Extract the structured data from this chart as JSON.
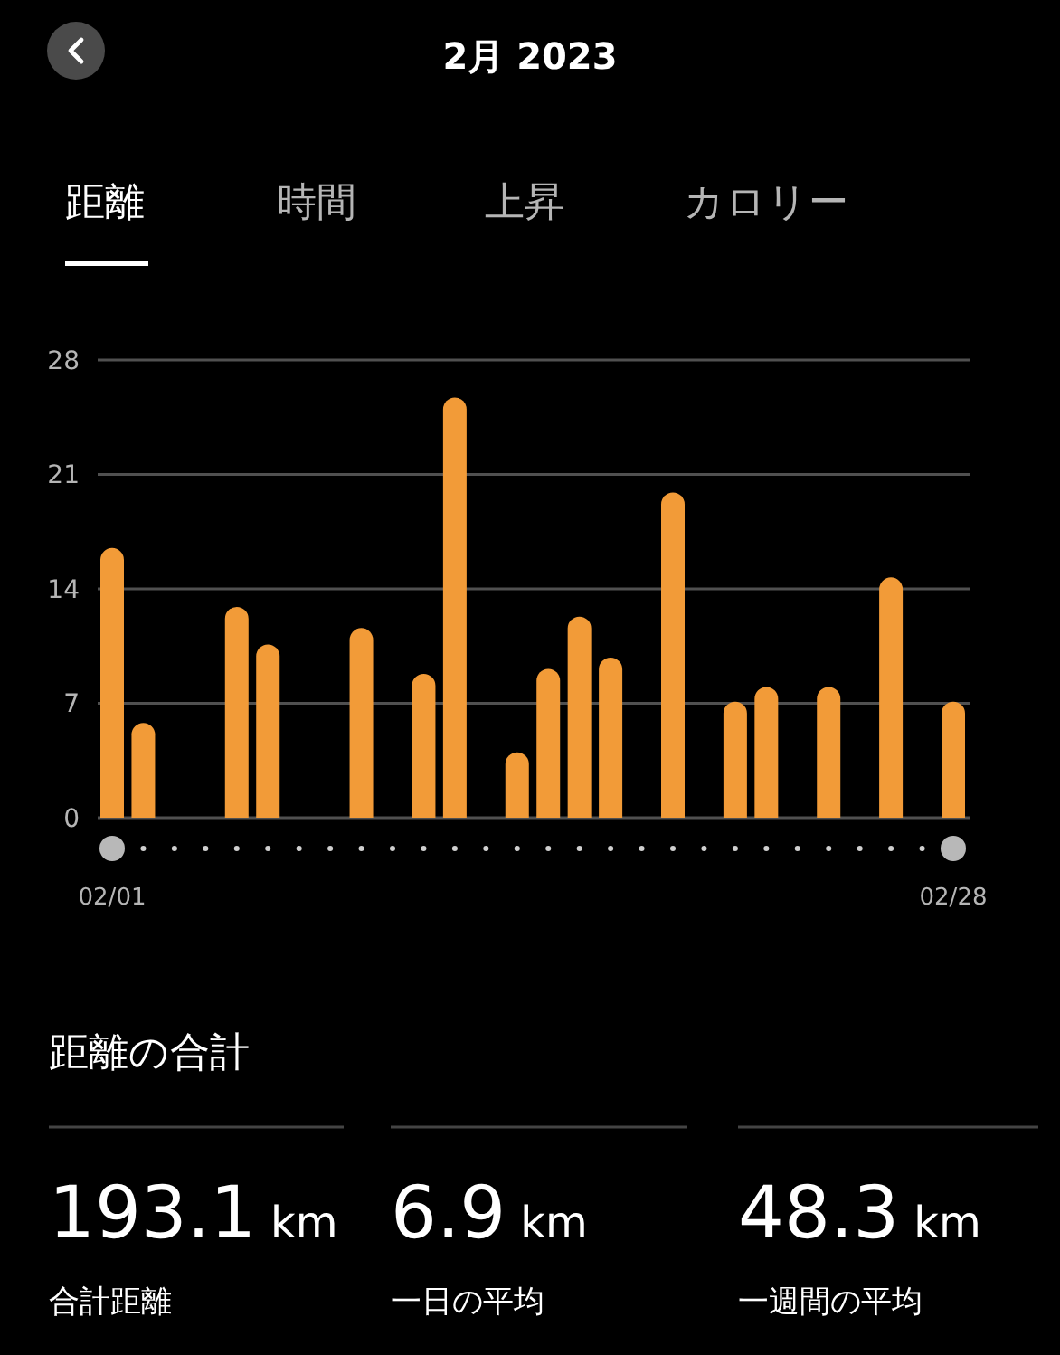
{
  "chart_data": {
    "type": "bar",
    "title": "2月 2023",
    "categories": [
      "02/01",
      null,
      null,
      null,
      null,
      null,
      null,
      null,
      null,
      null,
      null,
      null,
      null,
      null,
      null,
      null,
      null,
      null,
      null,
      null,
      null,
      null,
      null,
      null,
      null,
      null,
      null,
      "02/28"
    ],
    "values": [
      16.5,
      5.8,
      null,
      null,
      12.9,
      10.6,
      null,
      null,
      11.6,
      null,
      8.8,
      25.7,
      null,
      4.0,
      9.1,
      12.3,
      9.8,
      null,
      19.9,
      null,
      7.1,
      8.0,
      null,
      8.0,
      null,
      14.7,
      null,
      7.1
    ],
    "color": "#f29b38",
    "ylim": [
      0,
      28
    ],
    "yticks": [
      0,
      7,
      14,
      21,
      28
    ],
    "grid": "y",
    "annotations": [
      "距離",
      "時間",
      "上昇",
      "カロリー",
      "距離の合計",
      "193.1 km",
      "合計距離",
      "6.9 km",
      "一日の平均",
      "48.3 km",
      "一週間の平均"
    ]
  }
}
